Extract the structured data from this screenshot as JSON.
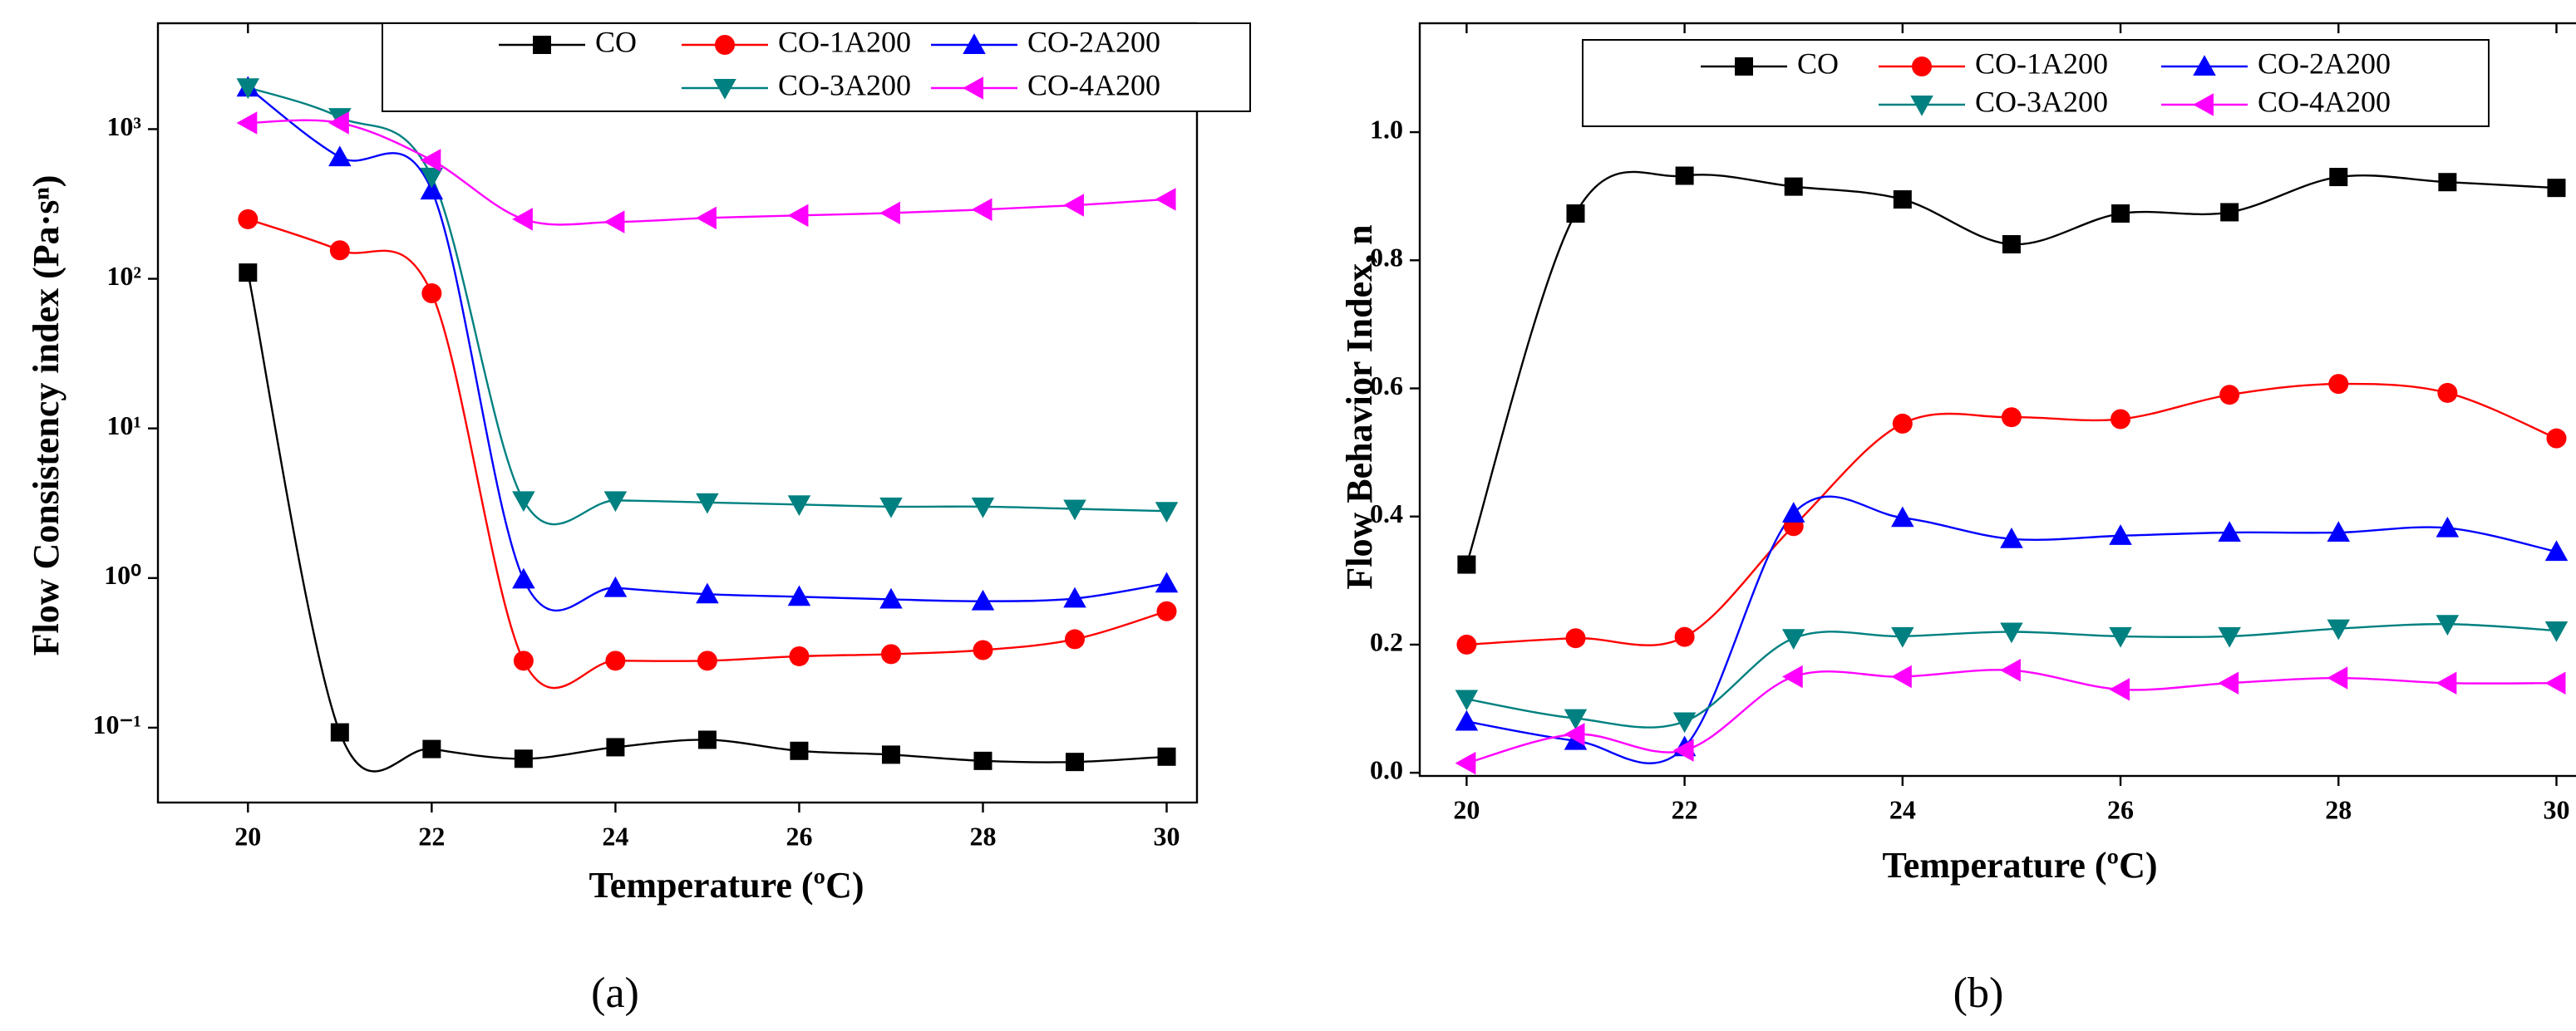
{
  "chart_data": [
    {
      "type": "line",
      "panel_label": "(a)",
      "x_label": "Temperature (ºC)",
      "y_label": "Flow Consistency index (Pa·sⁿ)",
      "log_y": true,
      "legend": "top",
      "x": [
        20,
        21,
        22,
        23,
        24,
        25,
        26,
        27,
        28,
        29,
        30
      ],
      "xlim": [
        19.02,
        30.33
      ],
      "xticks": [
        20,
        22,
        24,
        26,
        28,
        30
      ],
      "ylim": [
        0.0316,
        5100
      ],
      "yticks": [
        {
          "value": 0.1,
          "label": "10⁻¹"
        },
        {
          "value": 1,
          "label": "10⁰"
        },
        {
          "value": 10,
          "label": "10¹"
        },
        {
          "value": 100,
          "label": "10²"
        },
        {
          "value": 1000,
          "label": "10³"
        }
      ],
      "series": [
        {
          "name": "CO",
          "color": "#000000",
          "marker": "square",
          "values": [
            110,
            0.093,
            0.072,
            0.062,
            0.074,
            0.083,
            0.07,
            0.066,
            0.06,
            0.059,
            0.064
          ]
        },
        {
          "name": "CO-1A200",
          "color": "#ff0000",
          "marker": "circle",
          "values": [
            250,
            155,
            80,
            0.28,
            0.28,
            0.28,
            0.3,
            0.31,
            0.33,
            0.39,
            0.6
          ]
        },
        {
          "name": "CO-2A200",
          "color": "#0000ff",
          "marker": "triangle-up",
          "values": [
            1900,
            650,
            390,
            0.98,
            0.86,
            0.78,
            0.75,
            0.72,
            0.7,
            0.73,
            0.92
          ]
        },
        {
          "name": "CO-3A200",
          "color": "#008080",
          "marker": "triangle-down",
          "values": [
            1900,
            1200,
            480,
            3.3,
            3.3,
            3.2,
            3.1,
            3.0,
            3.0,
            2.9,
            2.8
          ]
        },
        {
          "name": "CO-4A200",
          "color": "#ff00ff",
          "marker": "triangle-left",
          "values": [
            1100,
            1100,
            620,
            250,
            240,
            255,
            265,
            275,
            290,
            310,
            340
          ]
        }
      ]
    },
    {
      "type": "line",
      "panel_label": "(b)",
      "x_label": "Temperature (ºC)",
      "y_label": "Flow Behavior Index, n",
      "log_y": false,
      "legend": "top",
      "x": [
        20,
        21,
        22,
        23,
        24,
        25,
        26,
        27,
        28,
        29,
        30
      ],
      "xlim": [
        19.57,
        30.37
      ],
      "xticks": [
        20,
        22,
        24,
        26,
        28,
        30
      ],
      "ylim": [
        -0.005,
        1.17
      ],
      "yticks": [
        {
          "value": 0,
          "label": "0.0"
        },
        0.2,
        0.4,
        0.6,
        0.8,
        {
          "value": 1,
          "label": "1.0"
        }
      ],
      "series": [
        {
          "name": "CO",
          "color": "#000000",
          "marker": "square",
          "values": [
            0.325,
            0.873,
            0.932,
            0.915,
            0.895,
            0.825,
            0.873,
            0.875,
            0.93,
            0.922,
            0.913
          ]
        },
        {
          "name": "CO-1A200",
          "color": "#ff0000",
          "marker": "circle",
          "values": [
            0.2,
            0.21,
            0.212,
            0.385,
            0.545,
            0.555,
            0.552,
            0.59,
            0.607,
            0.593,
            0.522
          ]
        },
        {
          "name": "CO-2A200",
          "color": "#0000ff",
          "marker": "triangle-up",
          "values": [
            0.08,
            0.05,
            0.04,
            0.405,
            0.398,
            0.365,
            0.37,
            0.375,
            0.375,
            0.382,
            0.345
          ]
        },
        {
          "name": "CO-3A200",
          "color": "#008080",
          "marker": "triangle-down",
          "values": [
            0.115,
            0.085,
            0.08,
            0.21,
            0.213,
            0.22,
            0.213,
            0.213,
            0.225,
            0.232,
            0.222
          ]
        },
        {
          "name": "CO-4A200",
          "color": "#ff00ff",
          "marker": "triangle-left",
          "values": [
            0.015,
            0.06,
            0.035,
            0.15,
            0.15,
            0.16,
            0.13,
            0.14,
            0.148,
            0.14,
            0.14
          ]
        }
      ]
    }
  ]
}
